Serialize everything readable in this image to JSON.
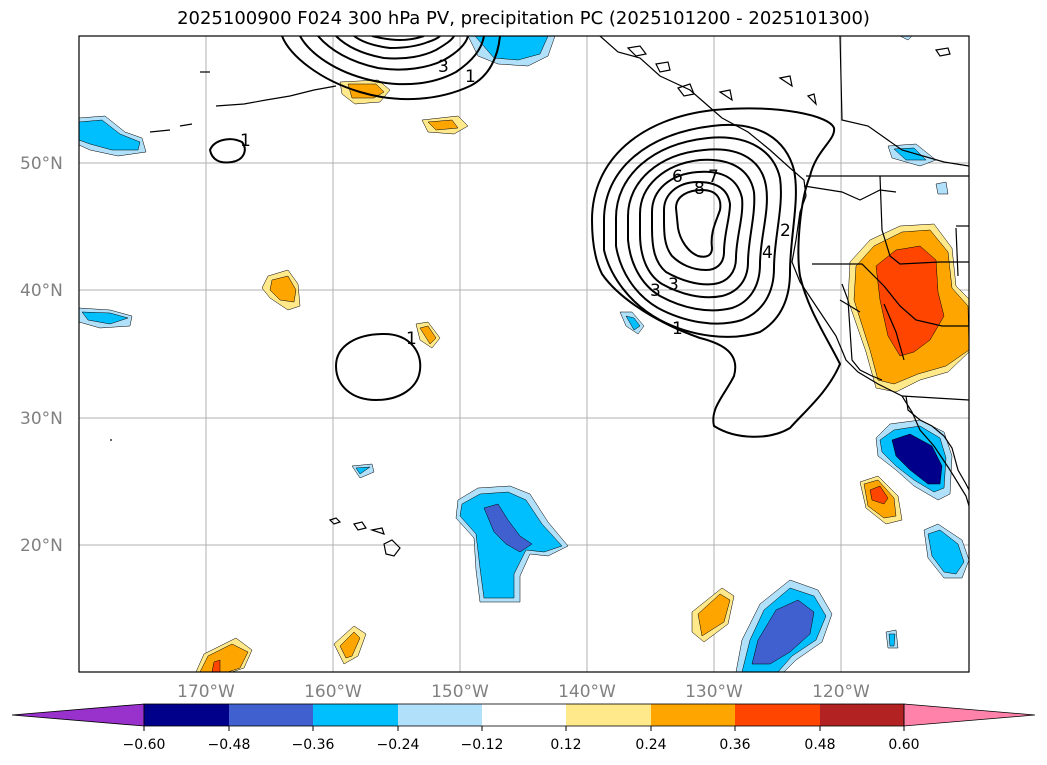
{
  "title": "2025100900 F024 300 hPa PV, precipitation PC (2025101200 - 2025101300)",
  "map": {
    "lat_labels": [
      "50°N",
      "40°N",
      "30°N",
      "20°N"
    ],
    "lon_labels": [
      "170°W",
      "160°W",
      "150°W",
      "140°W",
      "130°W",
      "120°W"
    ],
    "contour_labels": [
      "3",
      "1",
      "1",
      "7",
      "6",
      "8",
      "4",
      "2",
      "3",
      "3",
      "1",
      "1"
    ]
  },
  "colorbar": {
    "ticks": [
      "−0.60",
      "−0.48",
      "−0.36",
      "−0.24",
      "−0.12",
      "0.12",
      "0.24",
      "0.36",
      "0.48",
      "0.60"
    ],
    "colors": {
      "purple": "#9932cc",
      "navy": "#00008b",
      "royal": "#4060d0",
      "deepsky": "#00bfff",
      "lightblue": "#b0e0fa",
      "white": "#ffffff",
      "lightyellow": "#ffe98a",
      "orange": "#ffa500",
      "orangered": "#ff4500",
      "firebrick": "#b22222",
      "pink": "#ff82aa"
    }
  },
  "colors": {
    "grid": "#b0b0b0",
    "coast": "#000000",
    "contour": "#000000"
  }
}
